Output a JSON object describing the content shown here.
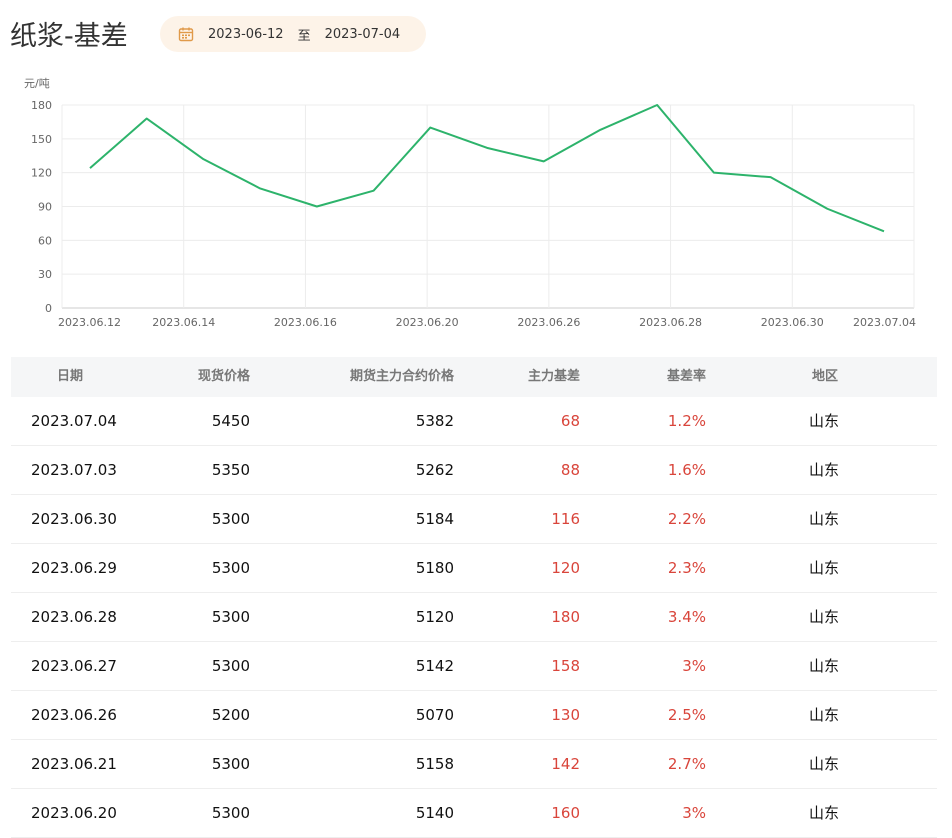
{
  "header": {
    "title": "纸浆-基差",
    "date_start": "2023-06-12",
    "date_sep": "至",
    "date_end": "2023-07-04"
  },
  "colors": {
    "line": "#2db36b",
    "basis_red": "#d9453b",
    "date_bg": "#fdf3e8",
    "calendar_icon": "#e09a4a"
  },
  "icons": {
    "date": "calendar-icon"
  },
  "chart_data": {
    "type": "line",
    "ylabel": "元/吨",
    "ylim": [
      0,
      180
    ],
    "yticks": [
      0,
      30,
      60,
      90,
      120,
      150,
      180
    ],
    "x_tick_labels": [
      "2023.06.12",
      "2023.06.14",
      "2023.06.16",
      "2023.06.20",
      "2023.06.26",
      "2023.06.28",
      "2023.06.30",
      "2023.07.04"
    ],
    "x": [
      "2023.06.12",
      "2023.06.13",
      "2023.06.14",
      "2023.06.15",
      "2023.06.16",
      "2023.06.19",
      "2023.06.20",
      "2023.06.21",
      "2023.06.26",
      "2023.06.27",
      "2023.06.28",
      "2023.06.29",
      "2023.06.30",
      "2023.07.03",
      "2023.07.04"
    ],
    "series": [
      {
        "values": [
          124,
          168,
          132,
          106,
          90,
          104,
          160,
          142,
          130,
          158,
          180,
          120,
          116,
          88,
          68
        ]
      }
    ],
    "grid": true
  },
  "table": {
    "headers": [
      "日期",
      "现货价格",
      "期货主力合约价格",
      "主力基差",
      "基差率",
      "地区"
    ],
    "rows": [
      [
        "2023.07.04",
        "5450",
        "5382",
        "68",
        "1.2%",
        "山东"
      ],
      [
        "2023.07.03",
        "5350",
        "5262",
        "88",
        "1.6%",
        "山东"
      ],
      [
        "2023.06.30",
        "5300",
        "5184",
        "116",
        "2.2%",
        "山东"
      ],
      [
        "2023.06.29",
        "5300",
        "5180",
        "120",
        "2.3%",
        "山东"
      ],
      [
        "2023.06.28",
        "5300",
        "5120",
        "180",
        "3.4%",
        "山东"
      ],
      [
        "2023.06.27",
        "5300",
        "5142",
        "158",
        "3%",
        "山东"
      ],
      [
        "2023.06.26",
        "5200",
        "5070",
        "130",
        "2.5%",
        "山东"
      ],
      [
        "2023.06.21",
        "5300",
        "5158",
        "142",
        "2.7%",
        "山东"
      ],
      [
        "2023.06.20",
        "5300",
        "5140",
        "160",
        "3%",
        "山东"
      ]
    ]
  }
}
